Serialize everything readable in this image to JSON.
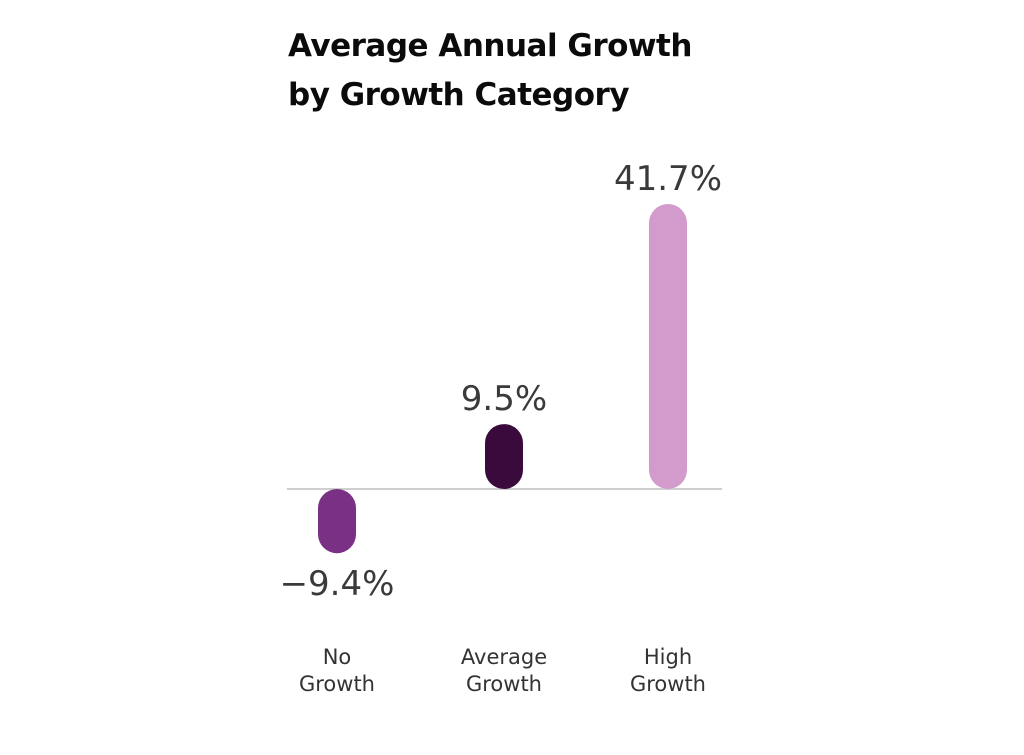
{
  "chart_data": {
    "type": "bar",
    "title": [
      "Average Annual Growth",
      "by Growth Category"
    ],
    "categories": [
      [
        "No",
        "Growth"
      ],
      [
        "Average",
        "Growth"
      ],
      [
        "High",
        "Growth"
      ]
    ],
    "values": [
      -9.4,
      9.5,
      41.7
    ],
    "value_labels": [
      "−9.4%",
      "9.5%",
      "41.7%"
    ],
    "colors": [
      "#7a3185",
      "#3b0a3d",
      "#d29bcb"
    ],
    "baseline_color": "#cfcfcf",
    "ylim": [
      -9.4,
      41.7
    ],
    "grid": false,
    "legend": "none"
  }
}
